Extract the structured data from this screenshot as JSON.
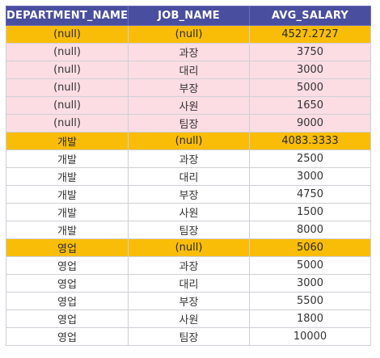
{
  "table": {
    "columns": [
      "DEPARTMENT_NAME",
      "JOB_NAME",
      "AVG_SALARY"
    ],
    "rows": [
      {
        "style": "total",
        "cells": [
          "(null)",
          "(null)",
          "4527.2727"
        ]
      },
      {
        "style": "pink",
        "cells": [
          "(null)",
          "과장",
          "3750"
        ]
      },
      {
        "style": "pink",
        "cells": [
          "(null)",
          "대리",
          "3000"
        ]
      },
      {
        "style": "pink",
        "cells": [
          "(null)",
          "부장",
          "5000"
        ]
      },
      {
        "style": "pink",
        "cells": [
          "(null)",
          "사원",
          "1650"
        ]
      },
      {
        "style": "pink",
        "cells": [
          "(null)",
          "팀장",
          "9000"
        ]
      },
      {
        "style": "total",
        "cells": [
          "개발",
          "(null)",
          "4083.3333"
        ]
      },
      {
        "style": "white",
        "cells": [
          "개발",
          "과장",
          "2500"
        ]
      },
      {
        "style": "white",
        "cells": [
          "개발",
          "대리",
          "3000"
        ]
      },
      {
        "style": "white",
        "cells": [
          "개발",
          "부장",
          "4750"
        ]
      },
      {
        "style": "white",
        "cells": [
          "개발",
          "사원",
          "1500"
        ]
      },
      {
        "style": "white",
        "cells": [
          "개발",
          "팀장",
          "8000"
        ]
      },
      {
        "style": "total",
        "cells": [
          "영업",
          "(null)",
          "5060"
        ]
      },
      {
        "style": "white",
        "cells": [
          "영업",
          "과장",
          "5000"
        ]
      },
      {
        "style": "white",
        "cells": [
          "영업",
          "대리",
          "3000"
        ]
      },
      {
        "style": "white",
        "cells": [
          "영업",
          "부장",
          "5500"
        ]
      },
      {
        "style": "white",
        "cells": [
          "영업",
          "사원",
          "1800"
        ]
      },
      {
        "style": "white",
        "cells": [
          "영업",
          "팀장",
          "10000"
        ]
      }
    ]
  },
  "colors": {
    "header_bg": "#4a4e9e",
    "total_row_bg": "#f9bd08",
    "pink_row_bg": "#fbdde3",
    "white_row_bg": "#ffffff"
  }
}
